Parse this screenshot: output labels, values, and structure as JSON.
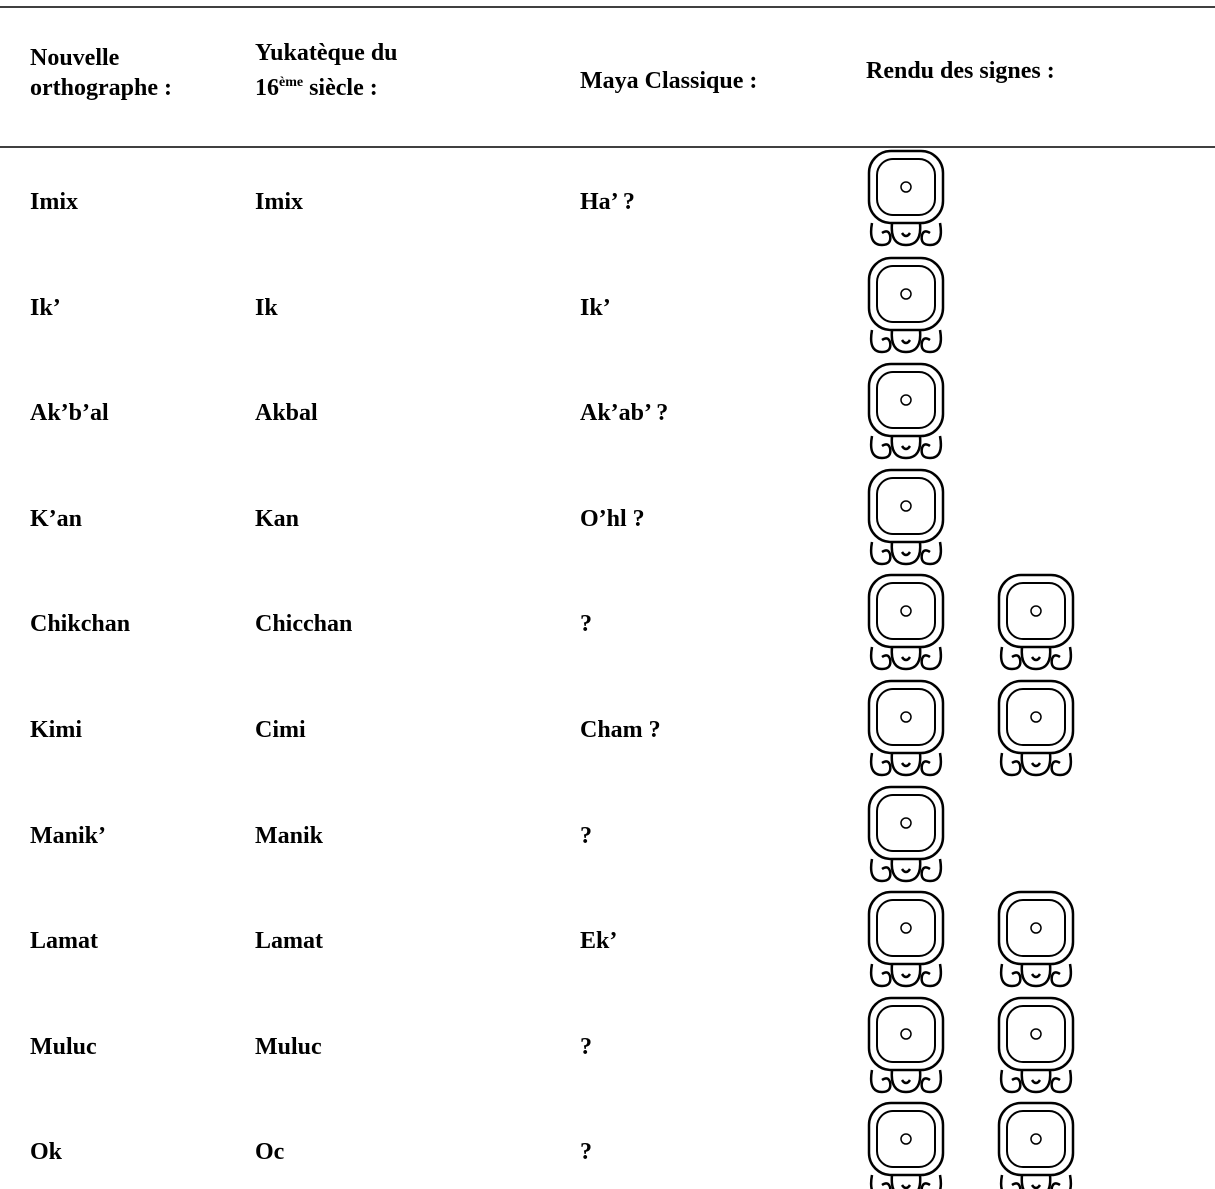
{
  "header": {
    "col1": [
      "Nouvelle",
      "orthographe :"
    ],
    "col2": {
      "line1": "Yukatèque du",
      "number": "16",
      "sup": "ème",
      "rest": "siècle :"
    },
    "col3": "Maya Classique :",
    "col4": "Rendu des signes :"
  },
  "table": {
    "rows": [
      [
        "Imix",
        "Imix",
        "Ha’ ?"
      ],
      [
        "Ik’",
        "Ik",
        "Ik’"
      ],
      [
        "Ak’b’al",
        "Akbal",
        "Ak’ab’ ?"
      ],
      [
        "K’an",
        "Kan",
        "O’hl ?"
      ],
      [
        "Chikchan",
        "Chicchan",
        "?"
      ],
      [
        "Kimi",
        "Cimi",
        "Cham ?"
      ],
      [
        "Manik’",
        "Manik",
        "?"
      ],
      [
        "Lamat",
        "Lamat",
        "Ek’"
      ],
      [
        "Muluc",
        "Muluc",
        "?"
      ],
      [
        "Ok",
        "Oc",
        "?"
      ]
    ]
  }
}
